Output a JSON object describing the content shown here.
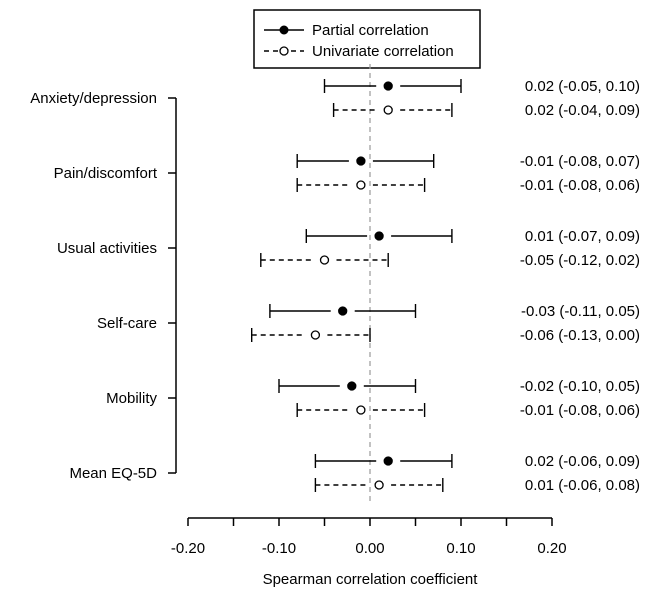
{
  "chart_data": {
    "type": "forest",
    "xlabel": "Spearman correlation coefficient",
    "xlim": [
      -0.2,
      0.2
    ],
    "x_ticks": [
      "-0.20",
      "-0.10",
      "0.00",
      "0.10",
      "0.20"
    ],
    "reference_line": 0.0,
    "legend": {
      "placement": "top-center",
      "entries": [
        {
          "name": "Partial correlation",
          "marker": "filled-circle",
          "line": "solid"
        },
        {
          "name": "Univariate correlation",
          "marker": "open-circle",
          "line": "dashed"
        }
      ]
    },
    "categories": [
      "Anxiety/depression",
      "Pain/discomfort",
      "Usual activities",
      "Self-care",
      "Mobility",
      "Mean EQ-5D"
    ],
    "series": [
      {
        "name": "Partial correlation",
        "values": [
          {
            "est": 0.02,
            "lo": -0.05,
            "hi": 0.1,
            "label": "0.02 (-0.05, 0.10)"
          },
          {
            "est": -0.01,
            "lo": -0.08,
            "hi": 0.07,
            "label": "-0.01 (-0.08, 0.07)"
          },
          {
            "est": 0.01,
            "lo": -0.07,
            "hi": 0.09,
            "label": "0.01 (-0.07, 0.09)"
          },
          {
            "est": -0.03,
            "lo": -0.11,
            "hi": 0.05,
            "label": "-0.03 (-0.11, 0.05)"
          },
          {
            "est": -0.02,
            "lo": -0.1,
            "hi": 0.05,
            "label": "-0.02 (-0.10, 0.05)"
          },
          {
            "est": 0.02,
            "lo": -0.06,
            "hi": 0.09,
            "label": "0.02 (-0.06, 0.09)"
          }
        ]
      },
      {
        "name": "Univariate correlation",
        "values": [
          {
            "est": 0.02,
            "lo": -0.04,
            "hi": 0.09,
            "label": "0.02 (-0.04, 0.09)"
          },
          {
            "est": -0.01,
            "lo": -0.08,
            "hi": 0.06,
            "label": "-0.01 (-0.08, 0.06)"
          },
          {
            "est": -0.05,
            "lo": -0.12,
            "hi": 0.02,
            "label": "-0.05 (-0.12, 0.02)"
          },
          {
            "est": -0.06,
            "lo": -0.13,
            "hi": 0.0,
            "label": "-0.06 (-0.13, 0.00)"
          },
          {
            "est": -0.01,
            "lo": -0.08,
            "hi": 0.06,
            "label": "-0.01 (-0.08, 0.06)"
          },
          {
            "est": 0.01,
            "lo": -0.06,
            "hi": 0.08,
            "label": "0.01 (-0.06, 0.08)"
          }
        ]
      }
    ]
  }
}
